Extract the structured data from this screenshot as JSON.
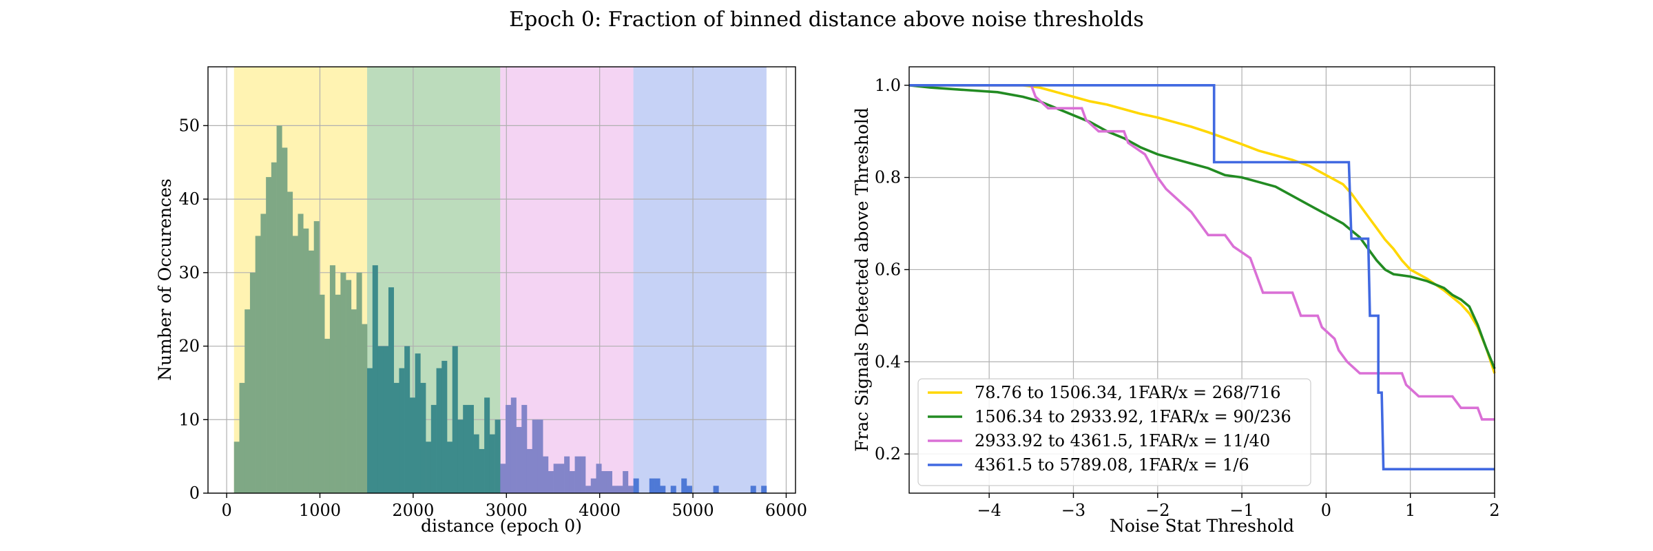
{
  "figure": {
    "title": "Epoch 0: Fraction of binned distance above noise thresholds"
  },
  "chart_data": [
    {
      "type": "bar",
      "subtype": "histogram",
      "xlabel": "distance (epoch 0)",
      "ylabel": "Number of Occurences",
      "xlim": [
        -200,
        6100
      ],
      "ylim": [
        0,
        58
      ],
      "xticks": [
        0,
        1000,
        2000,
        3000,
        4000,
        5000,
        6000
      ],
      "yticks": [
        0,
        10,
        20,
        30,
        40,
        50
      ],
      "grid": true,
      "bin_edges": [
        78.76,
        5789.08
      ],
      "bin_count": 100,
      "bands": [
        {
          "from": 78.76,
          "to": 1506.34,
          "color": "#FFD700",
          "bar_color": "#7fa885"
        },
        {
          "from": 1506.34,
          "to": 2933.92,
          "color": "#228B22",
          "bar_color": "#3d8b8b"
        },
        {
          "from": 2933.92,
          "to": 4361.5,
          "color": "#DA70D6",
          "bar_color": "#8385c9"
        },
        {
          "from": 4361.5,
          "to": 5789.08,
          "color": "#4169E1",
          "bar_color": "#4e79d6"
        }
      ],
      "counts": [
        7,
        15,
        25,
        30,
        35,
        38,
        43,
        45,
        50,
        47,
        41,
        35,
        38,
        36,
        33,
        37,
        27,
        21,
        31,
        27,
        30,
        29,
        25,
        30,
        23,
        17,
        31,
        20,
        20,
        28,
        15,
        17,
        20,
        13,
        19,
        15,
        7,
        12,
        17,
        18,
        7,
        20,
        10,
        12,
        12,
        8,
        6,
        13,
        8,
        10,
        4,
        12,
        13,
        9,
        12,
        6,
        10,
        10,
        5,
        3,
        4,
        4,
        5,
        3,
        5,
        5,
        1,
        2,
        4,
        3,
        3,
        1,
        1,
        3,
        1,
        2,
        0,
        0,
        2,
        2,
        1,
        0,
        1,
        0,
        2,
        1,
        0,
        0,
        0,
        0,
        1,
        0,
        0,
        0,
        0,
        0,
        0,
        1,
        0,
        1
      ]
    },
    {
      "type": "line",
      "xlabel": "Noise Stat Threshold",
      "ylabel": "Frac Signals Detected above Threshold",
      "xlim": [
        -4.95,
        2.0
      ],
      "ylim": [
        0.115,
        1.04
      ],
      "xticks": [
        -4,
        -3,
        -2,
        -1,
        0,
        1,
        2
      ],
      "xtick_labels": [
        "−4",
        "−3",
        "−2",
        "−1",
        "0",
        "1",
        "2"
      ],
      "yticks": [
        0.2,
        0.4,
        0.6,
        0.8,
        1.0
      ],
      "ytick_labels": [
        "0.2",
        "0.4",
        "0.6",
        "0.8",
        "1.0"
      ],
      "grid": true,
      "legend_position": "lower-left",
      "series": [
        {
          "name": "78.76 to 1506.34, 1FAR/x = 268/716",
          "color": "#FFD700",
          "points": [
            [
              -4.95,
              1.0
            ],
            [
              -3.6,
              1.0
            ],
            [
              -3.4,
              0.995
            ],
            [
              -3.2,
              0.985
            ],
            [
              -3.0,
              0.975
            ],
            [
              -2.8,
              0.965
            ],
            [
              -2.6,
              0.958
            ],
            [
              -2.4,
              0.948
            ],
            [
              -2.2,
              0.938
            ],
            [
              -2.0,
              0.93
            ],
            [
              -1.8,
              0.92
            ],
            [
              -1.6,
              0.91
            ],
            [
              -1.4,
              0.898
            ],
            [
              -1.2,
              0.885
            ],
            [
              -1.0,
              0.872
            ],
            [
              -0.8,
              0.858
            ],
            [
              -0.6,
              0.848
            ],
            [
              -0.4,
              0.838
            ],
            [
              -0.2,
              0.825
            ],
            [
              0.0,
              0.805
            ],
            [
              0.2,
              0.785
            ],
            [
              0.3,
              0.765
            ],
            [
              0.4,
              0.74
            ],
            [
              0.5,
              0.715
            ],
            [
              0.6,
              0.69
            ],
            [
              0.7,
              0.665
            ],
            [
              0.8,
              0.645
            ],
            [
              0.9,
              0.62
            ],
            [
              1.0,
              0.6
            ],
            [
              1.2,
              0.58
            ],
            [
              1.4,
              0.555
            ],
            [
              1.6,
              0.525
            ],
            [
              1.7,
              0.505
            ],
            [
              1.8,
              0.475
            ],
            [
              1.9,
              0.43
            ],
            [
              2.0,
              0.375
            ]
          ]
        },
        {
          "name": "1506.34 to 2933.92, 1FAR/x = 90/236",
          "color": "#228B22",
          "points": [
            [
              -4.95,
              1.0
            ],
            [
              -4.7,
              0.995
            ],
            [
              -4.3,
              0.99
            ],
            [
              -3.9,
              0.985
            ],
            [
              -3.6,
              0.975
            ],
            [
              -3.4,
              0.965
            ],
            [
              -3.2,
              0.95
            ],
            [
              -3.0,
              0.935
            ],
            [
              -2.8,
              0.92
            ],
            [
              -2.6,
              0.9
            ],
            [
              -2.4,
              0.885
            ],
            [
              -2.2,
              0.865
            ],
            [
              -2.0,
              0.85
            ],
            [
              -1.8,
              0.84
            ],
            [
              -1.6,
              0.83
            ],
            [
              -1.4,
              0.82
            ],
            [
              -1.2,
              0.805
            ],
            [
              -1.0,
              0.8
            ],
            [
              -0.8,
              0.79
            ],
            [
              -0.6,
              0.78
            ],
            [
              -0.4,
              0.76
            ],
            [
              -0.2,
              0.74
            ],
            [
              0.0,
              0.72
            ],
            [
              0.2,
              0.7
            ],
            [
              0.4,
              0.67
            ],
            [
              0.5,
              0.645
            ],
            [
              0.6,
              0.62
            ],
            [
              0.7,
              0.6
            ],
            [
              0.8,
              0.59
            ],
            [
              1.0,
              0.585
            ],
            [
              1.2,
              0.575
            ],
            [
              1.4,
              0.56
            ],
            [
              1.5,
              0.545
            ],
            [
              1.6,
              0.535
            ],
            [
              1.7,
              0.52
            ],
            [
              1.8,
              0.48
            ],
            [
              1.9,
              0.43
            ],
            [
              2.0,
              0.385
            ]
          ]
        },
        {
          "name": "2933.92 to 4361.5, 1FAR/x = 11/40",
          "color": "#DA70D6",
          "points": [
            [
              -4.95,
              1.0
            ],
            [
              -3.5,
              1.0
            ],
            [
              -3.45,
              0.975
            ],
            [
              -3.3,
              0.95
            ],
            [
              -2.9,
              0.95
            ],
            [
              -2.85,
              0.925
            ],
            [
              -2.7,
              0.9
            ],
            [
              -2.4,
              0.9
            ],
            [
              -2.35,
              0.875
            ],
            [
              -2.15,
              0.85
            ],
            [
              -2.0,
              0.8
            ],
            [
              -1.9,
              0.775
            ],
            [
              -1.75,
              0.75
            ],
            [
              -1.6,
              0.725
            ],
            [
              -1.5,
              0.7
            ],
            [
              -1.4,
              0.675
            ],
            [
              -1.2,
              0.675
            ],
            [
              -1.1,
              0.65
            ],
            [
              -0.9,
              0.625
            ],
            [
              -0.85,
              0.6
            ],
            [
              -0.8,
              0.575
            ],
            [
              -0.75,
              0.55
            ],
            [
              -0.4,
              0.55
            ],
            [
              -0.35,
              0.525
            ],
            [
              -0.3,
              0.5
            ],
            [
              -0.1,
              0.5
            ],
            [
              -0.05,
              0.475
            ],
            [
              0.1,
              0.45
            ],
            [
              0.15,
              0.425
            ],
            [
              0.25,
              0.4
            ],
            [
              0.4,
              0.375
            ],
            [
              0.9,
              0.375
            ],
            [
              0.95,
              0.35
            ],
            [
              1.1,
              0.325
            ],
            [
              1.5,
              0.325
            ],
            [
              1.6,
              0.3
            ],
            [
              1.8,
              0.3
            ],
            [
              1.85,
              0.275
            ],
            [
              2.0,
              0.275
            ]
          ]
        },
        {
          "name": "4361.5 to 5789.08, 1FAR/x = 1/6",
          "color": "#4169E1",
          "points": [
            [
              -4.95,
              1.0
            ],
            [
              -1.33,
              1.0
            ],
            [
              -1.33,
              0.833
            ],
            [
              0.27,
              0.833
            ],
            [
              0.3,
              0.667
            ],
            [
              0.5,
              0.667
            ],
            [
              0.52,
              0.5
            ],
            [
              0.62,
              0.5
            ],
            [
              0.62,
              0.333
            ],
            [
              0.66,
              0.333
            ],
            [
              0.68,
              0.167
            ],
            [
              2.0,
              0.167
            ]
          ]
        }
      ]
    }
  ]
}
